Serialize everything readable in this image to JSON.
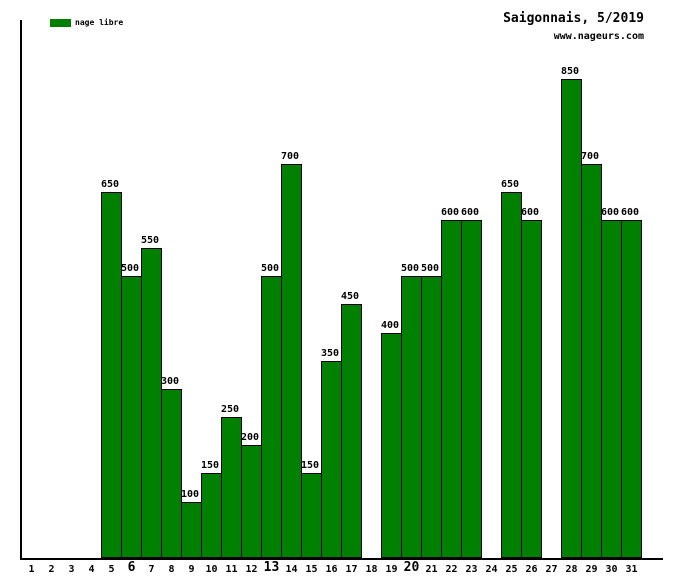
{
  "title": "Saigonnais, 5/2019",
  "website": "www.nageurs.com",
  "legend": {
    "label": "nage libre",
    "color": "#008000"
  },
  "chart_data": {
    "type": "bar",
    "title": "Saigonnais, 5/2019",
    "subtitle": "www.nageurs.com",
    "xlabel": "",
    "ylabel": "",
    "categories": [
      1,
      2,
      3,
      4,
      5,
      6,
      7,
      8,
      9,
      10,
      11,
      12,
      13,
      14,
      15,
      16,
      17,
      18,
      19,
      20,
      21,
      22,
      23,
      24,
      25,
      26,
      27,
      28,
      29,
      30,
      31
    ],
    "series": [
      {
        "name": "nage libre",
        "values": [
          null,
          null,
          null,
          null,
          650,
          500,
          550,
          300,
          100,
          150,
          250,
          200,
          500,
          700,
          150,
          350,
          450,
          null,
          400,
          500,
          500,
          600,
          600,
          null,
          650,
          600,
          null,
          850,
          700,
          600,
          600
        ]
      }
    ],
    "bar_color": "#008000",
    "bar_border_color": "#000000",
    "bold_x_ticks": [
      6,
      13,
      20
    ],
    "ylim": [
      0,
      950
    ],
    "grid": false,
    "legend_position": "top-left",
    "value_labels": "above-bars"
  }
}
